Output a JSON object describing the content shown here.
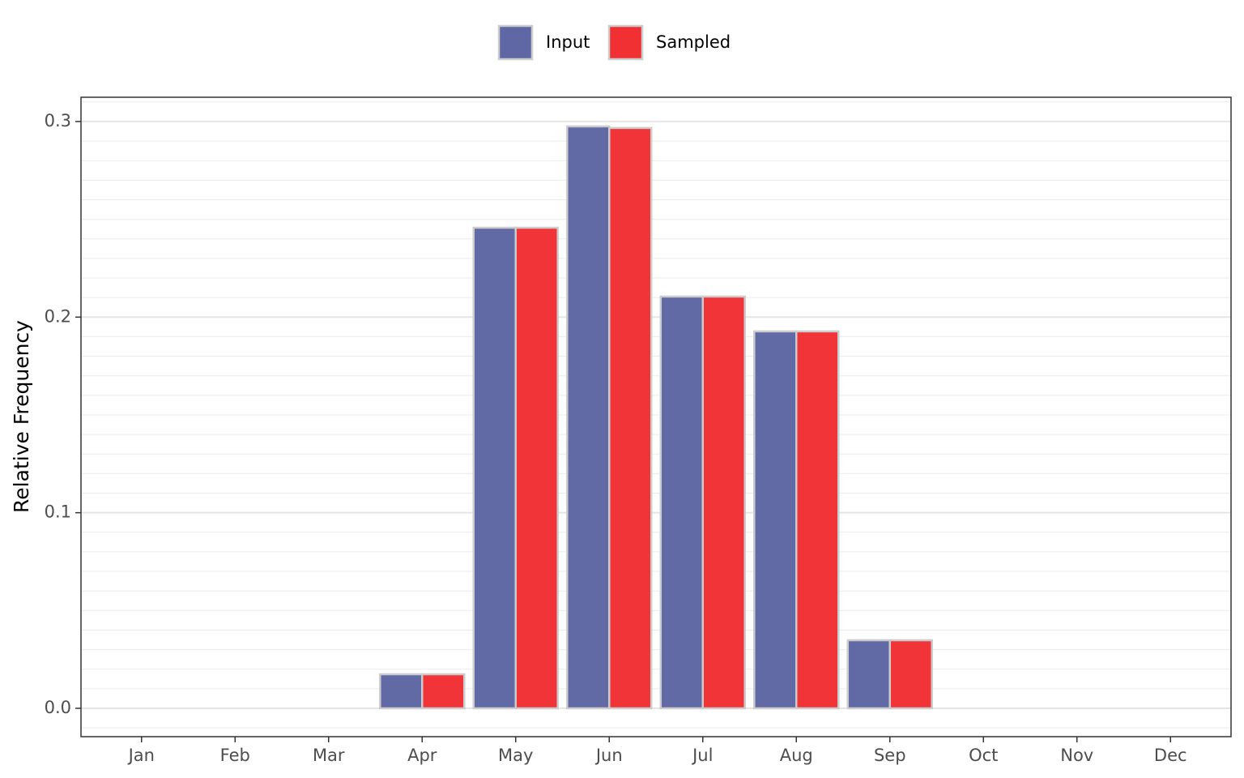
{
  "chart_data": {
    "type": "bar",
    "y_label": "Relative Frequency",
    "categories": [
      "Jan",
      "Feb",
      "Mar",
      "Apr",
      "May",
      "Jun",
      "Jul",
      "Aug",
      "Sep",
      "Oct",
      "Nov",
      "Dec"
    ],
    "series": [
      {
        "name": "Input",
        "color": "#5f67a4",
        "values": [
          0,
          0,
          0,
          0.0174,
          0.2457,
          0.2975,
          0.2105,
          0.1927,
          0.0348,
          0,
          0,
          0
        ]
      },
      {
        "name": "Sampled",
        "color": "#f03033",
        "values": [
          0,
          0,
          0,
          0.0174,
          0.2457,
          0.2967,
          0.2105,
          0.1927,
          0.0348,
          0,
          0,
          0
        ]
      }
    ],
    "ylim": [
      -0.0145,
      0.3124
    ],
    "yticks": [
      {
        "value": 0,
        "label": "0.0"
      },
      0.1,
      0.2,
      0.3
    ],
    "grid": true,
    "legend": "top"
  }
}
